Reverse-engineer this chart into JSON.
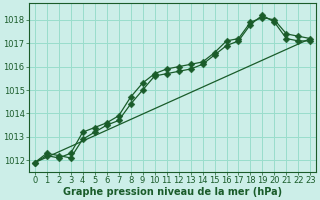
{
  "xlabel": "Graphe pression niveau de la mer (hPa)",
  "xlim": [
    -0.5,
    23.5
  ],
  "ylim": [
    1011.5,
    1018.7
  ],
  "yticks": [
    1012,
    1013,
    1014,
    1015,
    1016,
    1017,
    1018
  ],
  "xticks": [
    0,
    1,
    2,
    3,
    4,
    5,
    6,
    7,
    8,
    9,
    10,
    11,
    12,
    13,
    14,
    15,
    16,
    17,
    18,
    19,
    20,
    21,
    22,
    23
  ],
  "background_color": "#cceee8",
  "grid_color": "#99ddcc",
  "line_color": "#1a5c2a",
  "line1_x": [
    0,
    1,
    2,
    3,
    4,
    5,
    6,
    7,
    8,
    9,
    10,
    11,
    12,
    13,
    14,
    15,
    16,
    17,
    18,
    19,
    20,
    21,
    22,
    23
  ],
  "line1_y": [
    1011.9,
    1012.3,
    1012.2,
    1012.1,
    1012.9,
    1013.2,
    1013.5,
    1013.7,
    1014.4,
    1015.0,
    1015.6,
    1015.7,
    1015.8,
    1015.9,
    1016.1,
    1016.5,
    1016.9,
    1017.1,
    1017.8,
    1018.2,
    1017.9,
    1017.2,
    1017.1,
    1017.1
  ],
  "line2_x": [
    0,
    1,
    2,
    3,
    4,
    5,
    6,
    7,
    8,
    9,
    10,
    11,
    12,
    13,
    14,
    15,
    16,
    17,
    18,
    19,
    20,
    21,
    22,
    23
  ],
  "line2_y": [
    1011.9,
    1012.2,
    1012.1,
    1012.3,
    1013.2,
    1013.4,
    1013.6,
    1013.9,
    1014.7,
    1015.3,
    1015.7,
    1015.9,
    1016.0,
    1016.1,
    1016.2,
    1016.6,
    1017.1,
    1017.2,
    1017.9,
    1018.1,
    1018.0,
    1017.4,
    1017.3,
    1017.2
  ],
  "line3_x": [
    0,
    23
  ],
  "line3_y": [
    1011.9,
    1017.2
  ],
  "font_color": "#1a5c2a",
  "tick_fontsize": 6,
  "label_fontsize": 7,
  "label_fontweight": "bold"
}
